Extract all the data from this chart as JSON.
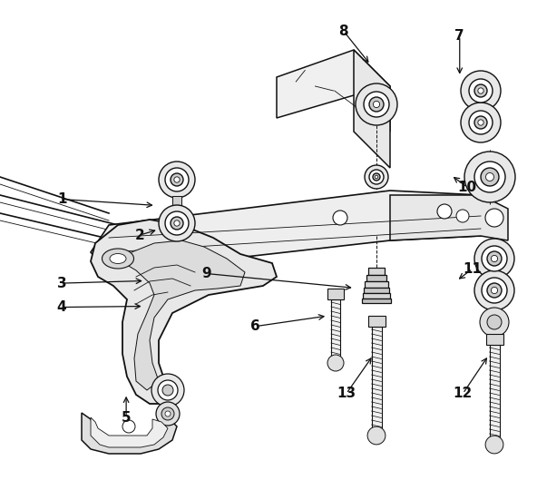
{
  "bg_color": "#ffffff",
  "line_color": "#111111",
  "figsize": [
    5.92,
    5.29
  ],
  "dpi": 100,
  "leaders": {
    "1": {
      "lpos": [
        0.115,
        0.68
      ],
      "tpos": [
        0.195,
        0.668
      ]
    },
    "2": {
      "lpos": [
        0.22,
        0.63
      ],
      "tpos": [
        0.2,
        0.635
      ]
    },
    "3": {
      "lpos": [
        0.1,
        0.45
      ],
      "tpos": [
        0.18,
        0.45
      ]
    },
    "4": {
      "lpos": [
        0.1,
        0.405
      ],
      "tpos": [
        0.173,
        0.405
      ]
    },
    "5": {
      "lpos": [
        0.19,
        0.145
      ],
      "tpos": [
        0.19,
        0.215
      ]
    },
    "6": {
      "lpos": [
        0.345,
        0.38
      ],
      "tpos": [
        0.38,
        0.38
      ]
    },
    "7": {
      "lpos": [
        0.72,
        0.93
      ],
      "tpos": [
        0.72,
        0.89
      ]
    },
    "8": {
      "lpos": [
        0.545,
        0.93
      ],
      "tpos": [
        0.545,
        0.855
      ]
    },
    "9": {
      "lpos": [
        0.435,
        0.52
      ],
      "tpos": [
        0.475,
        0.52
      ]
    },
    "10": {
      "lpos": [
        0.83,
        0.79
      ],
      "tpos": [
        0.79,
        0.79
      ]
    },
    "11": {
      "lpos": [
        0.84,
        0.6
      ],
      "tpos": [
        0.8,
        0.6
      ]
    },
    "12": {
      "lpos": [
        0.76,
        0.24
      ],
      "tpos": [
        0.75,
        0.285
      ]
    },
    "13": {
      "lpos": [
        0.565,
        0.24
      ],
      "tpos": [
        0.565,
        0.285
      ]
    }
  }
}
